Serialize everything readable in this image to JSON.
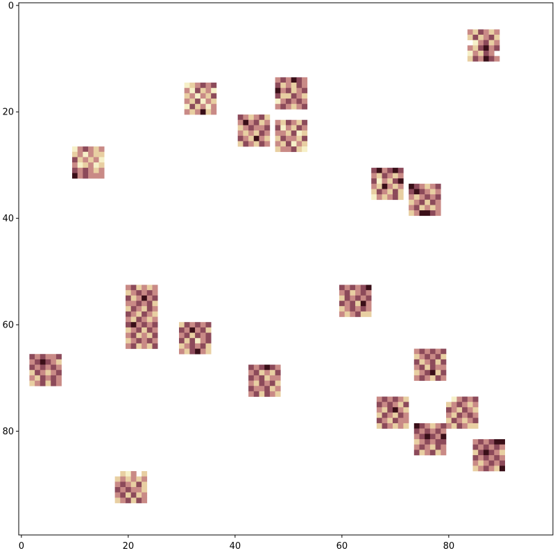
{
  "chart_data": {
    "type": "heatmap",
    "title": "",
    "xlabel": "",
    "ylabel": "",
    "xlim": [
      -0.5,
      99.5
    ],
    "ylim": [
      99.5,
      -0.5
    ],
    "x_ticks": [
      "0",
      "20",
      "40",
      "60",
      "80"
    ],
    "y_ticks": [
      "0",
      "20",
      "40",
      "60",
      "80"
    ],
    "grid": false,
    "colormap": [
      "#ffffff",
      "#f6f0c8",
      "#e8cfa2",
      "#c98a86",
      "#8c4a5a",
      "#3a0f18"
    ],
    "patch_size": 6,
    "patches": [
      {
        "row": 5,
        "col": 84,
        "cells": [
          3,
          2,
          4,
          3,
          2,
          3,
          2,
          4,
          2,
          3,
          4,
          2,
          0,
          1,
          3,
          4,
          2,
          3,
          3,
          2,
          4,
          5,
          3,
          4,
          1,
          3,
          2,
          4,
          3,
          0,
          2,
          4,
          3,
          5,
          4,
          3
        ]
      },
      {
        "row": 15,
        "col": 31,
        "cells": [
          1,
          2,
          3,
          4,
          3,
          4,
          3,
          1,
          4,
          2,
          3,
          1,
          2,
          3,
          1,
          3,
          2,
          4,
          3,
          2,
          4,
          1,
          3,
          2,
          1,
          4,
          2,
          3,
          1,
          3,
          3,
          2,
          3,
          5,
          2,
          3
        ]
      },
      {
        "row": 14,
        "col": 48,
        "cells": [
          3,
          4,
          3,
          5,
          4,
          3,
          4,
          2,
          3,
          2,
          4,
          3,
          5,
          3,
          4,
          2,
          3,
          4,
          4,
          2,
          2,
          4,
          3,
          2,
          1,
          3,
          4,
          3,
          4,
          3,
          3,
          4,
          3,
          2,
          3,
          4
        ]
      },
      {
        "row": 21,
        "col": 41,
        "cells": [
          4,
          3,
          2,
          3,
          4,
          2,
          3,
          5,
          3,
          4,
          2,
          3,
          2,
          3,
          4,
          3,
          3,
          4,
          3,
          2,
          3,
          2,
          4,
          3,
          4,
          3,
          2,
          5,
          3,
          2,
          2,
          4,
          3,
          2,
          4,
          3
        ]
      },
      {
        "row": 22,
        "col": 48,
        "cells": [
          3,
          2,
          4,
          3,
          2,
          4,
          4,
          1,
          3,
          2,
          4,
          3,
          3,
          3,
          2,
          4,
          1,
          2,
          2,
          4,
          3,
          3,
          2,
          4,
          3,
          2,
          4,
          1,
          3,
          2,
          2,
          3,
          3,
          4,
          2,
          1
        ]
      },
      {
        "row": 27,
        "col": 10,
        "cells": [
          1,
          3,
          4,
          3,
          2,
          3,
          2,
          3,
          1,
          3,
          2,
          2,
          4,
          2,
          3,
          2,
          3,
          1,
          3,
          1,
          2,
          3,
          1,
          2,
          4,
          3,
          4,
          3,
          2,
          3,
          5,
          3,
          4,
          3,
          3,
          3
        ]
      },
      {
        "row": 31,
        "col": 66,
        "cells": [
          4,
          5,
          3,
          4,
          5,
          4,
          3,
          2,
          4,
          3,
          2,
          3,
          4,
          1,
          3,
          2,
          4,
          5,
          3,
          2,
          5,
          3,
          2,
          3,
          2,
          4,
          3,
          2,
          4,
          2,
          1,
          3,
          2,
          3,
          4,
          2
        ]
      },
      {
        "row": 34,
        "col": 73,
        "cells": [
          5,
          4,
          3,
          2,
          3,
          4,
          4,
          5,
          4,
          3,
          2,
          3,
          3,
          2,
          3,
          4,
          3,
          4,
          2,
          3,
          4,
          2,
          4,
          3,
          3,
          4,
          2,
          3,
          2,
          3,
          2,
          3,
          5,
          5,
          4,
          3
        ]
      },
      {
        "row": 53,
        "col": 20,
        "cells": [
          3,
          4,
          2,
          3,
          2,
          3,
          2,
          3,
          4,
          3,
          4,
          3,
          4,
          2,
          3,
          5,
          3,
          4,
          3,
          3,
          4,
          3,
          4,
          2,
          2,
          4,
          3,
          2,
          4,
          3,
          4,
          3,
          2,
          4,
          3,
          2
        ]
      },
      {
        "row": 59,
        "col": 20,
        "cells": [
          3,
          2,
          4,
          3,
          2,
          3,
          4,
          5,
          3,
          4,
          3,
          4,
          2,
          3,
          4,
          2,
          4,
          3,
          3,
          4,
          2,
          3,
          2,
          4,
          2,
          3,
          4,
          3,
          4,
          3,
          3,
          4,
          2,
          3,
          2,
          4
        ]
      },
      {
        "row": 53,
        "col": 60,
        "cells": [
          4,
          3,
          4,
          3,
          4,
          5,
          3,
          4,
          2,
          3,
          4,
          3,
          2,
          4,
          3,
          4,
          3,
          4,
          4,
          3,
          4,
          2,
          5,
          3,
          2,
          3,
          4,
          3,
          4,
          3,
          3,
          2,
          3,
          4,
          2,
          2
        ]
      },
      {
        "row": 60,
        "col": 30,
        "cells": [
          2,
          4,
          3,
          4,
          3,
          4,
          4,
          3,
          5,
          3,
          4,
          2,
          3,
          4,
          2,
          4,
          3,
          4,
          4,
          2,
          4,
          1,
          3,
          4,
          2,
          3,
          4,
          3,
          4,
          2,
          3,
          2,
          4,
          5,
          3,
          2
        ]
      },
      {
        "row": 66,
        "col": 2,
        "cells": [
          4,
          3,
          4,
          3,
          3,
          4,
          3,
          4,
          5,
          4,
          3,
          2,
          4,
          3,
          4,
          3,
          4,
          3,
          2,
          4,
          3,
          2,
          3,
          4,
          3,
          2,
          4,
          3,
          4,
          3,
          2,
          3,
          4,
          2,
          4,
          3
        ]
      },
      {
        "row": 65,
        "col": 74,
        "cells": [
          3,
          4,
          3,
          4,
          3,
          4,
          2,
          3,
          4,
          3,
          4,
          2,
          4,
          2,
          3,
          4,
          2,
          4,
          3,
          4,
          2,
          4,
          3,
          3,
          2,
          3,
          4,
          5,
          2,
          4,
          3,
          4,
          3,
          2,
          4,
          3
        ]
      },
      {
        "row": 68,
        "col": 43,
        "cells": [
          4,
          3,
          4,
          5,
          4,
          3,
          3,
          4,
          2,
          3,
          2,
          4,
          4,
          3,
          4,
          2,
          3,
          3,
          3,
          2,
          4,
          3,
          4,
          2,
          4,
          3,
          3,
          4,
          2,
          3,
          3,
          4,
          2,
          4,
          3,
          2
        ]
      },
      {
        "row": 74,
        "col": 67,
        "cells": [
          3,
          4,
          3,
          4,
          3,
          2,
          4,
          3,
          4,
          3,
          2,
          4,
          3,
          2,
          4,
          5,
          3,
          2,
          2,
          4,
          3,
          2,
          4,
          3,
          4,
          3,
          2,
          4,
          3,
          3,
          2,
          4,
          3,
          2,
          3,
          2
        ]
      },
      {
        "row": 74,
        "col": 80,
        "cells": [
          0,
          1,
          3,
          4,
          3,
          4,
          2,
          3,
          4,
          3,
          2,
          3,
          4,
          3,
          2,
          4,
          3,
          2,
          3,
          2,
          4,
          3,
          4,
          3,
          2,
          4,
          3,
          2,
          3,
          4,
          3,
          2,
          4,
          3,
          2,
          2
        ]
      },
      {
        "row": 79,
        "col": 74,
        "cells": [
          5,
          4,
          3,
          2,
          3,
          4,
          4,
          3,
          4,
          3,
          4,
          3,
          3,
          4,
          5,
          4,
          3,
          5,
          2,
          3,
          4,
          3,
          4,
          4,
          3,
          4,
          3,
          2,
          4,
          3,
          4,
          2,
          3,
          4,
          2,
          3
        ]
      },
      {
        "row": 82,
        "col": 85,
        "cells": [
          3,
          4,
          3,
          4,
          5,
          5,
          4,
          3,
          4,
          3,
          4,
          3,
          2,
          4,
          5,
          4,
          3,
          2,
          4,
          3,
          4,
          3,
          4,
          3,
          3,
          2,
          3,
          4,
          3,
          4,
          2,
          3,
          4,
          3,
          2,
          5
        ]
      },
      {
        "row": 88,
        "col": 18,
        "cells": [
          0,
          2,
          1,
          3,
          0,
          2,
          2,
          3,
          2,
          3,
          2,
          3,
          3,
          4,
          3,
          2,
          4,
          2,
          4,
          3,
          4,
          3,
          3,
          2,
          3,
          4,
          2,
          4,
          2,
          3,
          2,
          3,
          4,
          2,
          4,
          3
        ]
      }
    ]
  }
}
